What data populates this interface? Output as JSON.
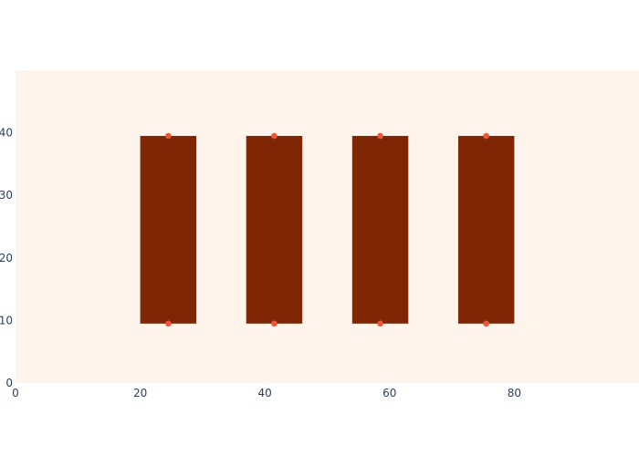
{
  "chart_data": {
    "type": "bar",
    "title": "",
    "xlabel": "",
    "ylabel": "",
    "xlim": [
      0,
      100
    ],
    "ylim": [
      0,
      50
    ],
    "grid": false,
    "legend": "none",
    "x_ticks": [
      "0",
      "20",
      "40",
      "60",
      "80"
    ],
    "y_ticks": [
      "0",
      "10",
      "20",
      "30",
      "40"
    ],
    "bars": [
      {
        "x_start": 20,
        "x_end": 29,
        "y_bottom": 9.5,
        "y_top": 39.5
      },
      {
        "x_start": 37,
        "x_end": 46,
        "y_bottom": 9.5,
        "y_top": 39.5
      },
      {
        "x_start": 54,
        "x_end": 63,
        "y_bottom": 9.5,
        "y_top": 39.5
      },
      {
        "x_start": 71,
        "x_end": 80,
        "y_bottom": 9.5,
        "y_top": 39.5
      }
    ],
    "points": [
      {
        "x": 24.5,
        "y": 9.5
      },
      {
        "x": 24.5,
        "y": 39.5
      },
      {
        "x": 41.5,
        "y": 9.5
      },
      {
        "x": 41.5,
        "y": 39.5
      },
      {
        "x": 58.5,
        "y": 9.5
      },
      {
        "x": 58.5,
        "y": 39.5
      },
      {
        "x": 75.5,
        "y": 9.5
      },
      {
        "x": 75.5,
        "y": 39.5
      }
    ]
  },
  "colors": {
    "plot_background": "#fff4eb",
    "page_background": "#ffffff",
    "bar_fill": "#7f2704",
    "marker": "#ef553b",
    "tick_text": "#2a3f5f"
  }
}
